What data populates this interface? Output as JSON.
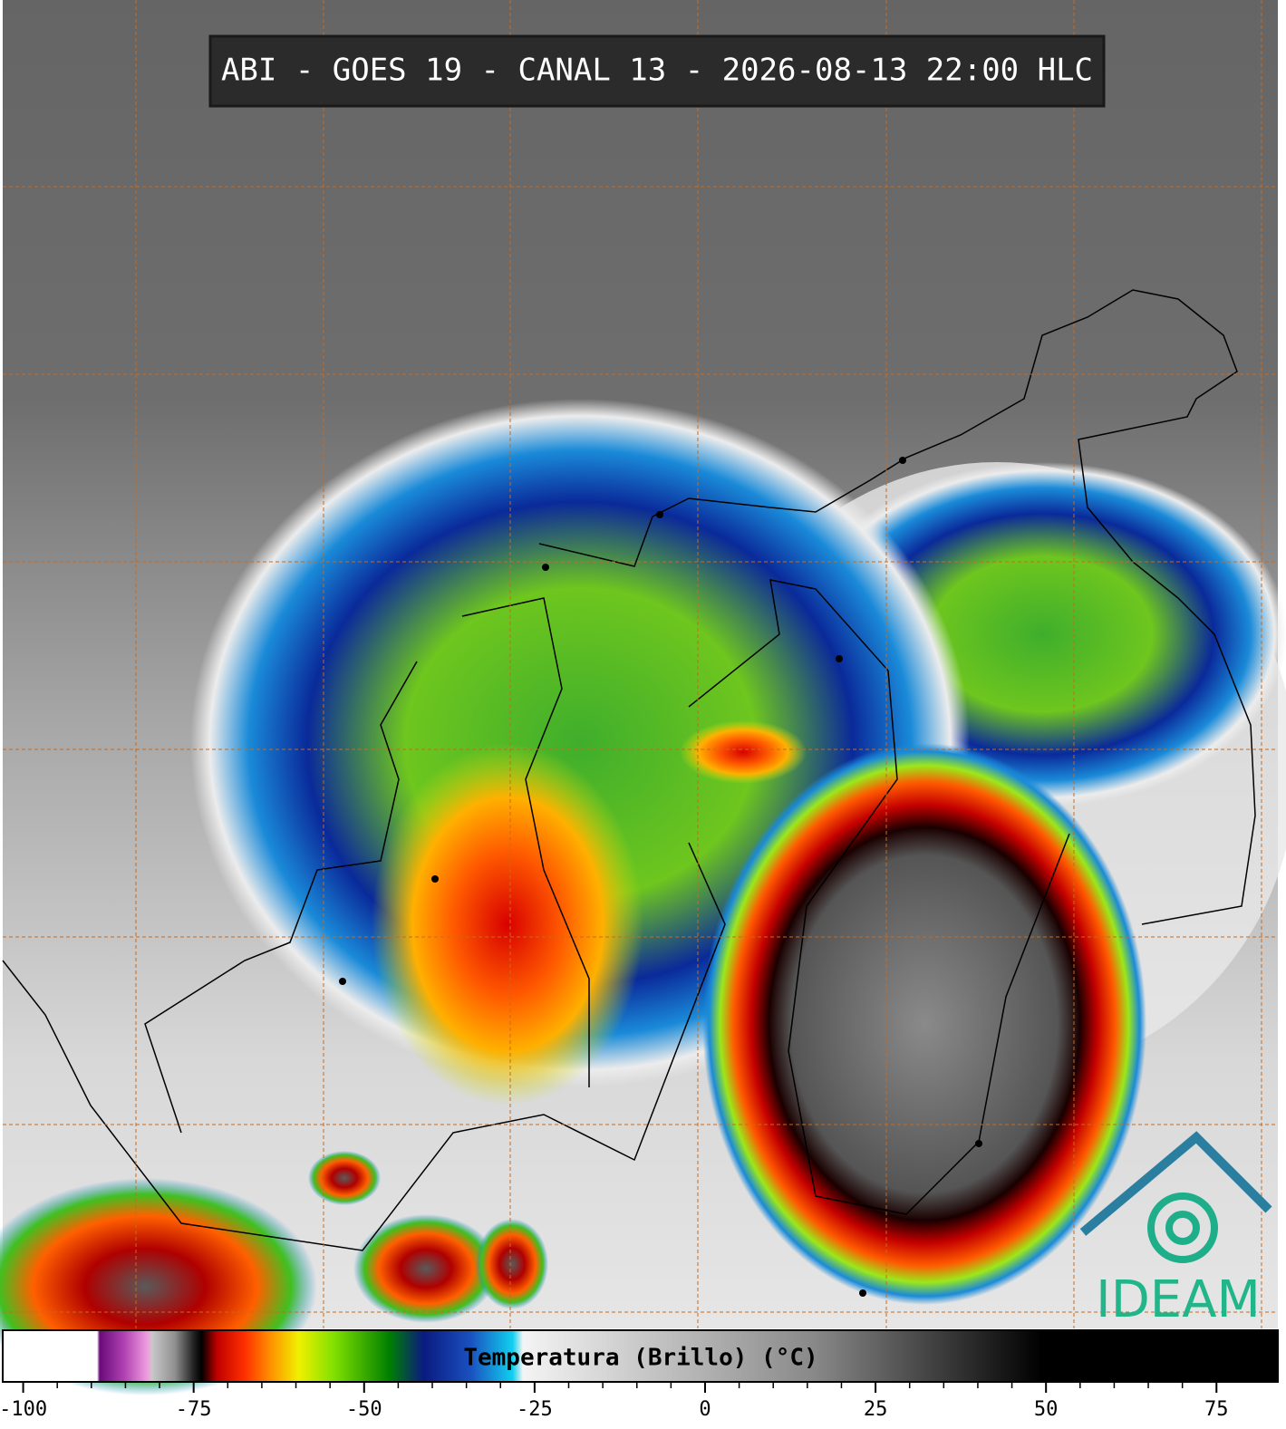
{
  "header": {
    "title": "ABI - GOES 19 - CANAL 13 - 2026-08-13 22:00 HLC"
  },
  "colorbar": {
    "label": "Temperatura (Brillo) (°C)",
    "range": [
      -103,
      84
    ],
    "ticks": [
      -100,
      -75,
      -50,
      -25,
      0,
      25,
      50,
      75
    ]
  },
  "logo": {
    "text": "IDEAM"
  }
}
